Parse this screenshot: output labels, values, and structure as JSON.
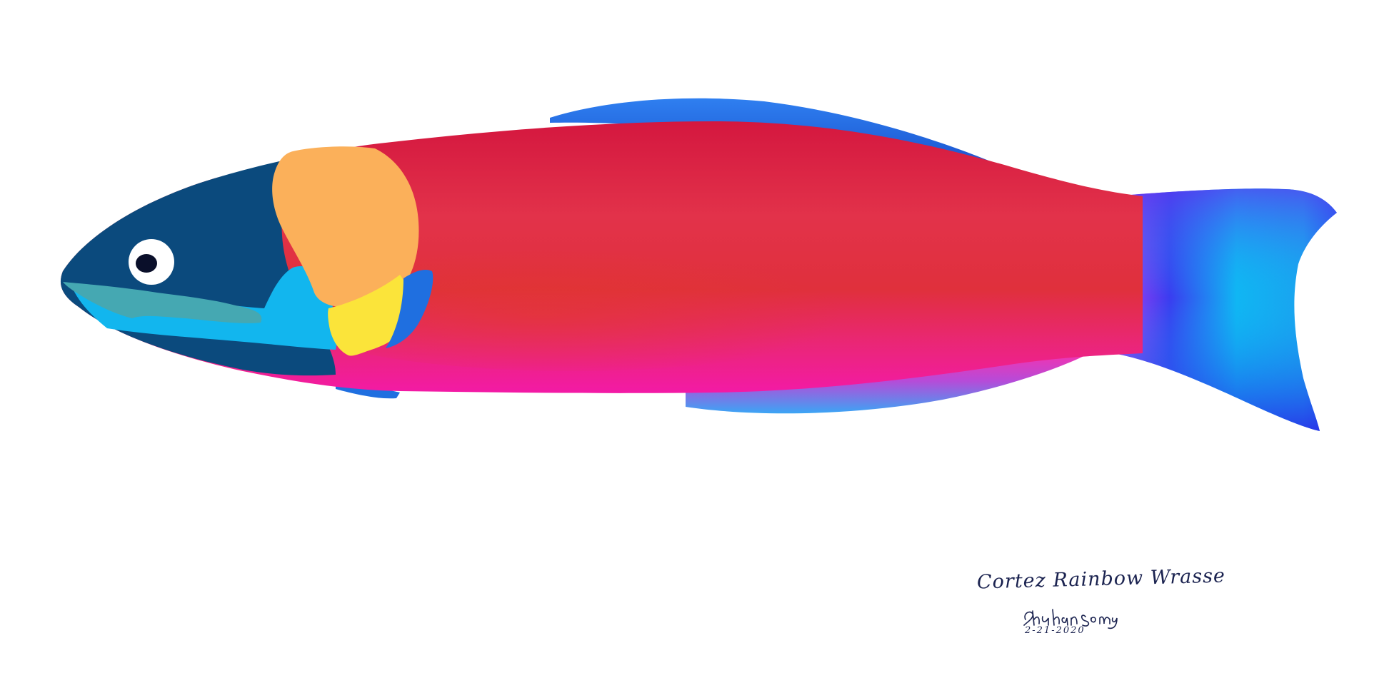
{
  "artwork": {
    "title": "Cortez Rainbow Wrasse",
    "artist_signature": "Shuhan Song",
    "date": "2-21-2020"
  },
  "colors": {
    "background": "#ffffff",
    "body_red": "#e2324a",
    "body_magenta": "#f21b9a",
    "head_navy": "#0b4a7d",
    "cheek_cyan": "#12b6ee",
    "cheek_teal": "#45a8b2",
    "gill_orange": "#fbb05a",
    "gill_yellow": "#fbe43a",
    "fin_blue": "#1f7fe8",
    "tail_cyan": "#0fb5f2",
    "tail_purple": "#a13cf0",
    "ink": "#1b2350"
  },
  "icons": {
    "fish": "wrasse-fish-illustration",
    "signature": "handwritten-signature"
  }
}
